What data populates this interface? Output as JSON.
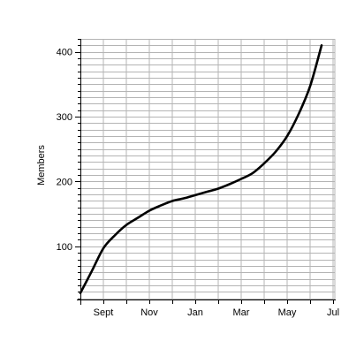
{
  "chart_data": {
    "type": "line",
    "title": "",
    "xlabel": "",
    "ylabel": "Members",
    "x_tick_labels": [
      "Sept",
      "Nov",
      "Jan",
      "Mar",
      "May",
      "Jul"
    ],
    "y_ticks": [
      100,
      200,
      300,
      400
    ],
    "ylim": [
      18,
      420
    ],
    "grid": true,
    "series": [
      {
        "color": "#000000",
        "points": [
          {
            "x": "Aug",
            "y": 28
          },
          {
            "x": "mid-Aug",
            "y": 62
          },
          {
            "x": "Sept",
            "y": 97
          },
          {
            "x": "mid-Sept",
            "y": 117
          },
          {
            "x": "Oct",
            "y": 133
          },
          {
            "x": "mid-Oct",
            "y": 144
          },
          {
            "x": "Nov",
            "y": 155
          },
          {
            "x": "mid-Nov",
            "y": 163
          },
          {
            "x": "Dec",
            "y": 170
          },
          {
            "x": "mid-Dec",
            "y": 174
          },
          {
            "x": "Jan",
            "y": 179
          },
          {
            "x": "mid-Jan",
            "y": 184
          },
          {
            "x": "Feb",
            "y": 189
          },
          {
            "x": "mid-Feb",
            "y": 196
          },
          {
            "x": "Mar",
            "y": 204
          },
          {
            "x": "mid-Mar",
            "y": 213
          },
          {
            "x": "Apr",
            "y": 228
          },
          {
            "x": "mid-Apr",
            "y": 246
          },
          {
            "x": "May",
            "y": 270
          },
          {
            "x": "mid-May",
            "y": 304
          },
          {
            "x": "Jun",
            "y": 347
          },
          {
            "x": "mid-Jun",
            "y": 410
          }
        ]
      }
    ]
  }
}
